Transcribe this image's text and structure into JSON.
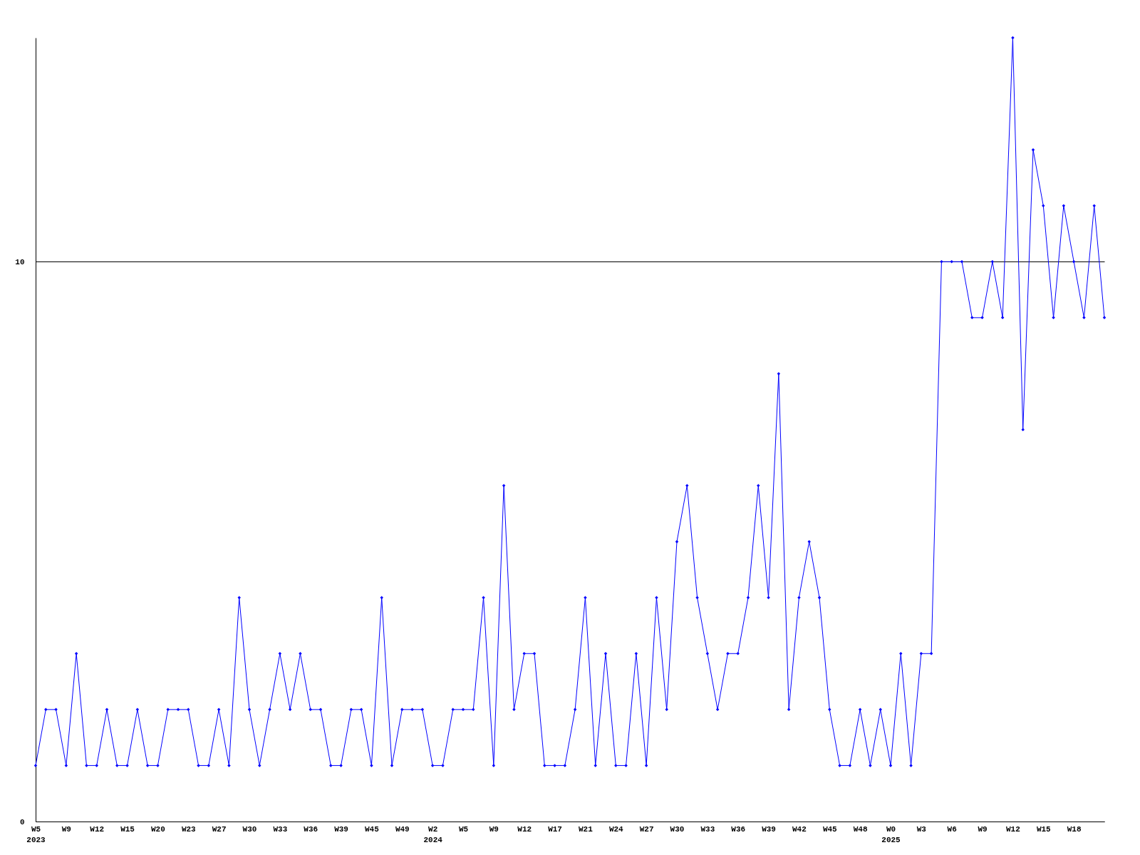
{
  "chart_data": {
    "type": "line",
    "categories": [
      "W5\n2023",
      null,
      null,
      "W9",
      null,
      null,
      "W12",
      null,
      null,
      "W15",
      null,
      null,
      "W20",
      null,
      null,
      "W23",
      null,
      null,
      "W27",
      null,
      null,
      "W30",
      null,
      null,
      "W33",
      null,
      null,
      "W36",
      null,
      null,
      "W39",
      null,
      null,
      "W45",
      null,
      null,
      "W49",
      null,
      null,
      "W2\n2024",
      null,
      null,
      "W5",
      null,
      null,
      "W9",
      null,
      null,
      "W12",
      null,
      null,
      "W17",
      null,
      null,
      "W21",
      null,
      null,
      "W24",
      null,
      null,
      "W27",
      null,
      null,
      "W30",
      null,
      null,
      "W33",
      null,
      null,
      "W36",
      null,
      null,
      "W39",
      null,
      null,
      "W42",
      null,
      null,
      "W45",
      null,
      null,
      "W48",
      null,
      null,
      "W0\n2025",
      null,
      null,
      "W3",
      null,
      null,
      "W6",
      null,
      null,
      "W9",
      null,
      null,
      "W12",
      null,
      null,
      "W15",
      null,
      null,
      "W18",
      null,
      null,
      null
    ],
    "series": [
      {
        "color": "#0000ff",
        "values": [
          1,
          2,
          2,
          1,
          3,
          1,
          1,
          2,
          1,
          1,
          2,
          1,
          1,
          2,
          2,
          2,
          1,
          1,
          2,
          1,
          4,
          2,
          1,
          2,
          3,
          2,
          3,
          2,
          2,
          1,
          1,
          2,
          2,
          1,
          4,
          1,
          2,
          2,
          2,
          1,
          1,
          2,
          2,
          2,
          4,
          1,
          6,
          2,
          3,
          3,
          1,
          1,
          1,
          2,
          4,
          1,
          3,
          1,
          1,
          3,
          1,
          4,
          2,
          5,
          6,
          4,
          3,
          2,
          3,
          3,
          4,
          6,
          4,
          8,
          2,
          4,
          5,
          4,
          2,
          1,
          1,
          2,
          1,
          2,
          1,
          3,
          1,
          3,
          3,
          10,
          10,
          10,
          9,
          9,
          10,
          9,
          14,
          7,
          12,
          11,
          9,
          11,
          10,
          9,
          11,
          9
        ]
      }
    ],
    "ylim": [
      0,
      14
    ],
    "yticks": [
      0,
      10
    ],
    "grid": "y",
    "marker": "diamond",
    "line_style": "solid"
  }
}
